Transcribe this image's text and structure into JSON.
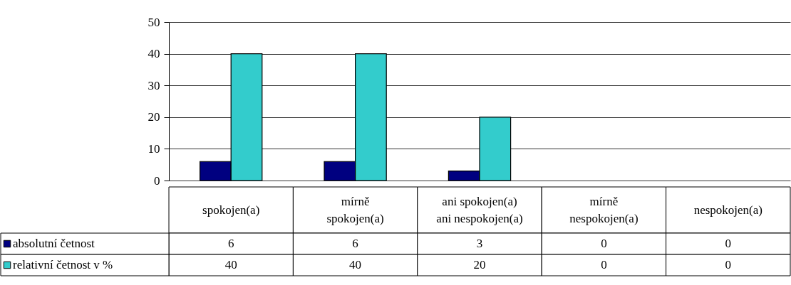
{
  "chart_data": {
    "type": "bar",
    "categories": [
      "spokojen(a)",
      "mírně spokojen(a)",
      "ani spokojen(a) ani nespokojen(a)",
      "mírně nespokojen(a)",
      "nespokojen(a)"
    ],
    "series": [
      {
        "name": "absolutní četnost",
        "color": "#000080",
        "values": [
          6,
          6,
          3,
          0,
          0
        ]
      },
      {
        "name": "relativní četnost v %",
        "color": "#33cccc",
        "values": [
          40,
          40,
          20,
          0,
          0
        ]
      }
    ],
    "ylim": [
      0,
      50
    ],
    "yticks": [
      0,
      10,
      20,
      30,
      40,
      50
    ],
    "grid": "y",
    "legend": "bottom left",
    "data_labels": true
  }
}
